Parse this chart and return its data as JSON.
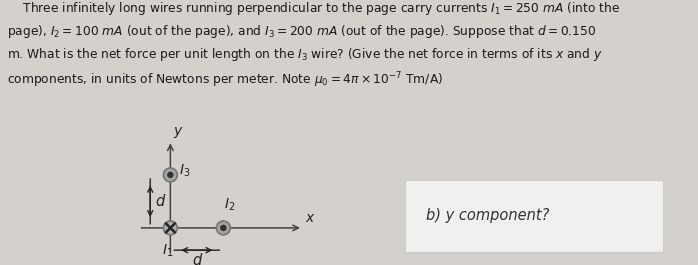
{
  "bg_color": "#d4d0cc",
  "text_lines": [
    "    Three infinitely long wires running perpendicular to the page carry currents ͳ1 = 250 mA (into the",
    "page), ܲ2 = 100 mA (out of the page), and ܲ3 = 200 mA (out of the page). Suppose that d = 0.150",
    "m. What is the net force per unit length on the ܲ3 wire? (Give the net force in terms of its x and y",
    "components, in units of Newtons per meter. Note μ0 = 4π × 10⁻⁷ Tm/A)"
  ],
  "text_raw": "    Three infinitely long wires running perpendicular to the page carry currents $I_1=250$ $mA$ (into the\npage), $I_2=100$ $mA$ (out of the page), and $I_3=200$ $mA$ (out of the page). Suppose that $d=0.150$\nm. What is the net force per unit length on the $I_3$ wire? (Give the net force in terms of its $x$ and $y$\ncomponents, in units of Newtons per meter. Note $\\mu_0 = 4\\pi \\times 10^{-7}$ Tm/A)",
  "text_fontsize": 8.8,
  "text_color": "#1a1a1a",
  "diagram": {
    "I1_label": "$I_1$",
    "I2_label": "$I_2$",
    "I3_label": "$I_3$",
    "d_label": "d",
    "y_label": "y",
    "x_label": "x",
    "wire_color": "#555555",
    "circle_edge": "#777777",
    "circle_fill": "#b0b0b0",
    "circle_inner_fill": "#888888",
    "axis_color": "#444444",
    "text_color": "#222222"
  },
  "b_part_text": "b) y component?",
  "b_part_fontsize": 10.5,
  "b_box_facecolor": "#f0f0ee",
  "b_box_edgecolor": "#cccccc"
}
